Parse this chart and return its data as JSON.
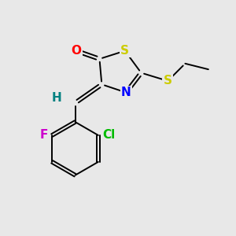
{
  "bg_color": "#e8e8e8",
  "atom_colors": {
    "O": "#ff0000",
    "S": "#cccc00",
    "N": "#0000ff",
    "F": "#cc00cc",
    "Cl": "#00bb00",
    "H": "#008080",
    "C": "#000000"
  },
  "bond_color": "#000000",
  "bond_width": 1.4,
  "xlim": [
    0,
    10
  ],
  "ylim": [
    0,
    10
  ],
  "figsize": [
    3.0,
    3.0
  ],
  "dpi": 100
}
